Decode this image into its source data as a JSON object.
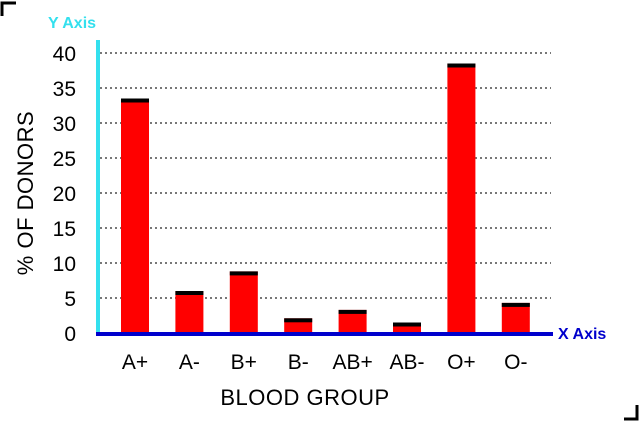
{
  "chart_data": {
    "type": "bar",
    "categories": [
      "A+",
      "A-",
      "B+",
      "B-",
      "AB+",
      "AB-",
      "O+",
      "O-"
    ],
    "values": [
      33.5,
      6,
      8.8,
      2.1,
      3.3,
      1.5,
      38.5,
      4.3
    ],
    "xlabel": "BLOOD GROUP",
    "ylabel": "% OF DONORS",
    "ylim": [
      0,
      40
    ],
    "yticks": [
      0,
      5,
      10,
      15,
      20,
      25,
      30,
      35,
      40
    ],
    "grid": true,
    "legend": "none",
    "y_axis_name": "Y Axis",
    "x_axis_name": "X Axis",
    "colors": {
      "bar": "#ff0000",
      "bar_top": "#000000",
      "y_axis": "#33e0ee",
      "x_axis": "#0000cc",
      "axis_name_y": "#33e0ee",
      "axis_name_x": "#0000cc",
      "grid": "#777777",
      "corner_marks": "#000000"
    }
  }
}
